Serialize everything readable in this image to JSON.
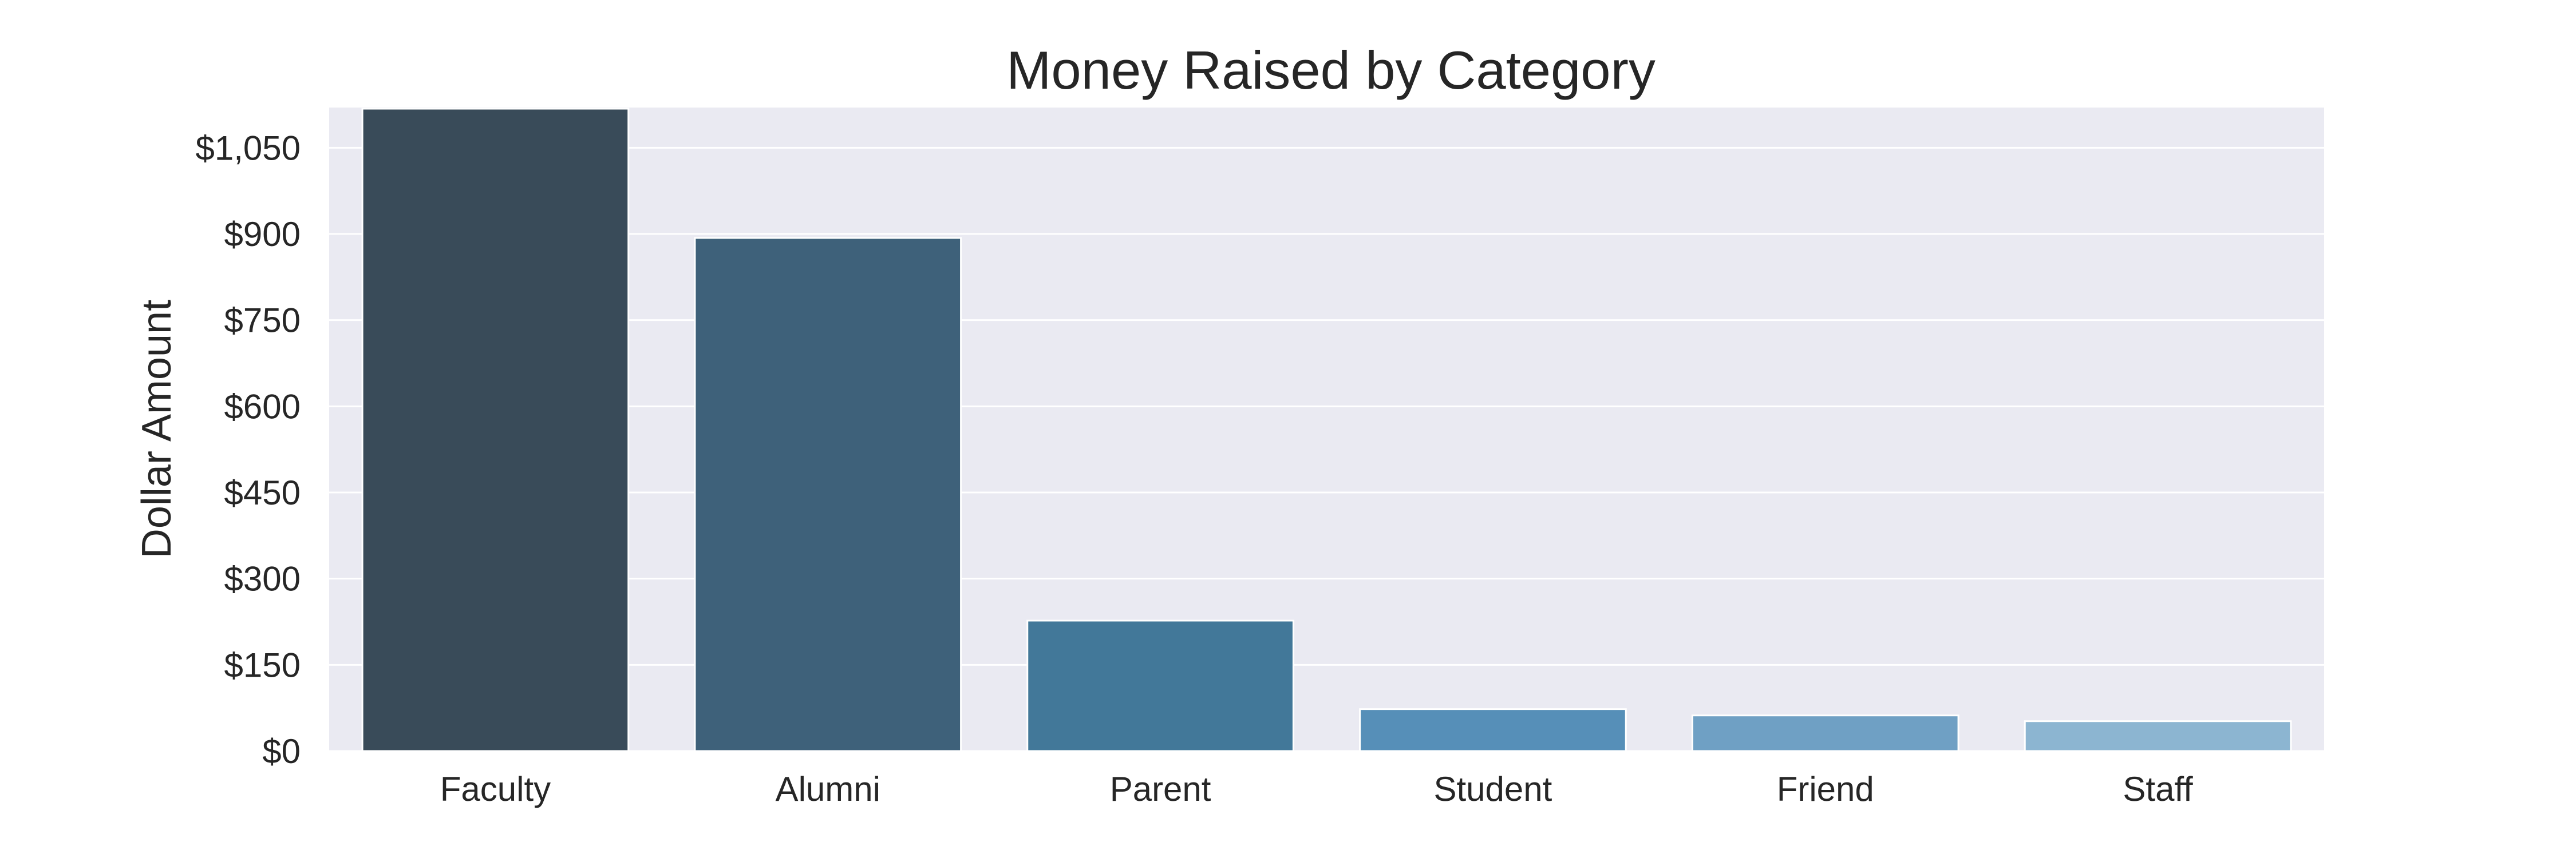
{
  "chart_data": {
    "type": "bar",
    "title": "Money Raised by Category",
    "xlabel": "",
    "ylabel": "Dollar Amount",
    "categories": [
      "Faculty",
      "Alumni",
      "Parent",
      "Student",
      "Friend",
      "Staff"
    ],
    "values": [
      1118,
      893,
      227,
      73,
      62,
      52
    ],
    "ylim": [
      0,
      1120
    ],
    "yticks": [
      0,
      150,
      300,
      450,
      600,
      750,
      900,
      1050
    ],
    "ytick_labels": [
      "$0",
      "$150",
      "$300",
      "$450",
      "$600",
      "$750",
      "$900",
      "$1,050"
    ],
    "grid": true,
    "bar_colors": [
      "#394b59",
      "#3e617a",
      "#427899",
      "#568fb8",
      "#6fa0c4",
      "#8cb5d1"
    ],
    "background_color": "#eaeaf2"
  }
}
